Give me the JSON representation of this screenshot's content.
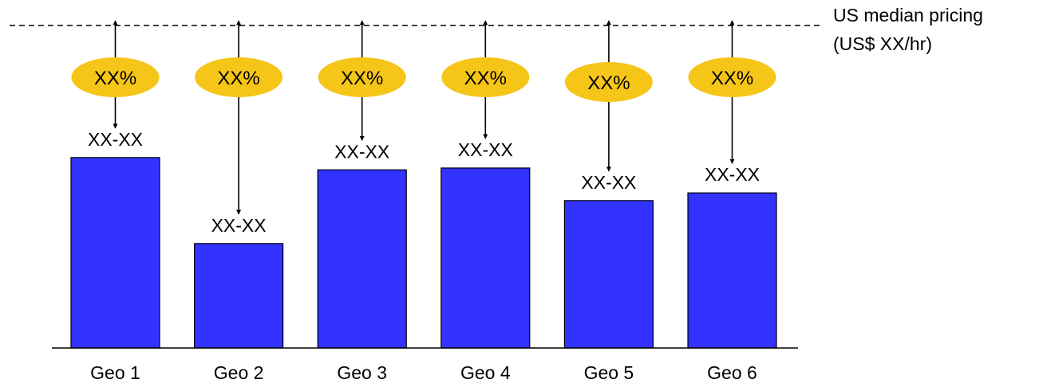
{
  "chart_data": {
    "type": "bar",
    "categories": [
      "Geo 1",
      "Geo 2",
      "Geo 3",
      "Geo 4",
      "Geo 5",
      "Geo 6"
    ],
    "values": [
      62,
      34,
      58,
      58.6,
      48,
      50.5
    ],
    "bar_labels": [
      "XX-XX",
      "XX-XX",
      "XX-XX",
      "XX-XX",
      "XX-XX",
      "XX-XX"
    ],
    "gap_labels": [
      "XX%",
      "XX%",
      "XX%",
      "XX%",
      "XX%",
      "XX%"
    ],
    "reference": {
      "value": 105,
      "label_line1": "US median pricing",
      "label_line2": "(US$ XX/hr)"
    },
    "ylim": [
      0,
      105
    ],
    "title": "",
    "xlabel": "",
    "ylabel": "",
    "grid": false,
    "colors": {
      "bar": "#3333ff",
      "bar_outline": "#000000",
      "gap_ellipse": "#f5c518",
      "reference_line": "#000000"
    }
  }
}
